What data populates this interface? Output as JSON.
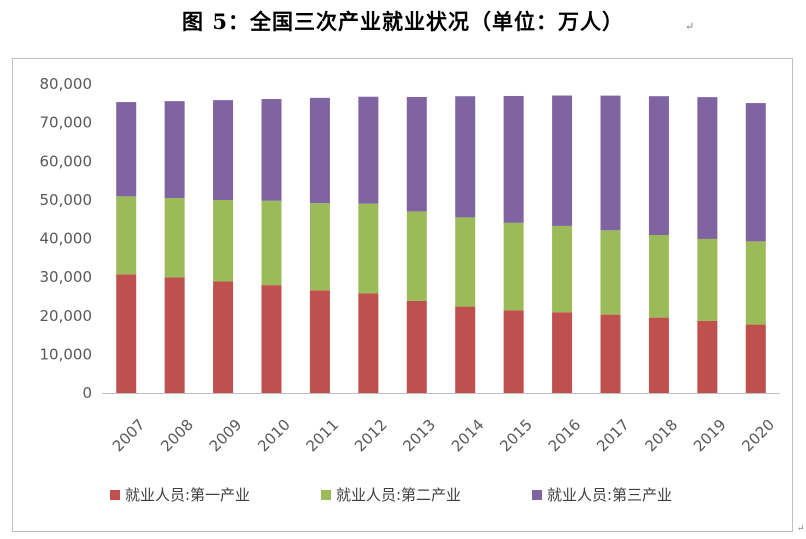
{
  "page": {
    "title": "图 5：全国三次产业就业状况（单位：万人）",
    "return_mark": "↵",
    "corner_mark": "↵"
  },
  "chart_data": {
    "type": "bar",
    "stacked": true,
    "categories": [
      "2007",
      "2008",
      "2009",
      "2010",
      "2011",
      "2012",
      "2013",
      "2014",
      "2015",
      "2016",
      "2017",
      "2018",
      "2019",
      "2020"
    ],
    "series": [
      {
        "name": "就业人员:第一产业",
        "color": "#c0504d",
        "values": [
          30731,
          29923,
          28890,
          27931,
          26594,
          25773,
          23838,
          22372,
          21418,
          20908,
          20295,
          19515,
          18652,
          17715
        ]
      },
      {
        "name": "就业人员:第二产业",
        "color": "#9bbb59",
        "values": [
          20186,
          20553,
          21080,
          21842,
          22544,
          23241,
          23170,
          23099,
          22644,
          22350,
          21824,
          21390,
          21234,
          21543
        ]
      },
      {
        "name": "就业人员:第三产业",
        "color": "#8064a2",
        "values": [
          24404,
          25087,
          25857,
          26332,
          27282,
          27690,
          29636,
          31364,
          32839,
          33757,
          34872,
          35938,
          36721,
          35806
        ]
      }
    ],
    "ylim": [
      0,
      80000
    ],
    "yticks": [
      "0",
      "10,000",
      "20,000",
      "30,000",
      "40,000",
      "50,000",
      "60,000",
      "70,000",
      "80,000"
    ],
    "ytick_values": [
      0,
      10000,
      20000,
      30000,
      40000,
      50000,
      60000,
      70000,
      80000
    ],
    "grid": false,
    "legend_position": "bottom"
  }
}
